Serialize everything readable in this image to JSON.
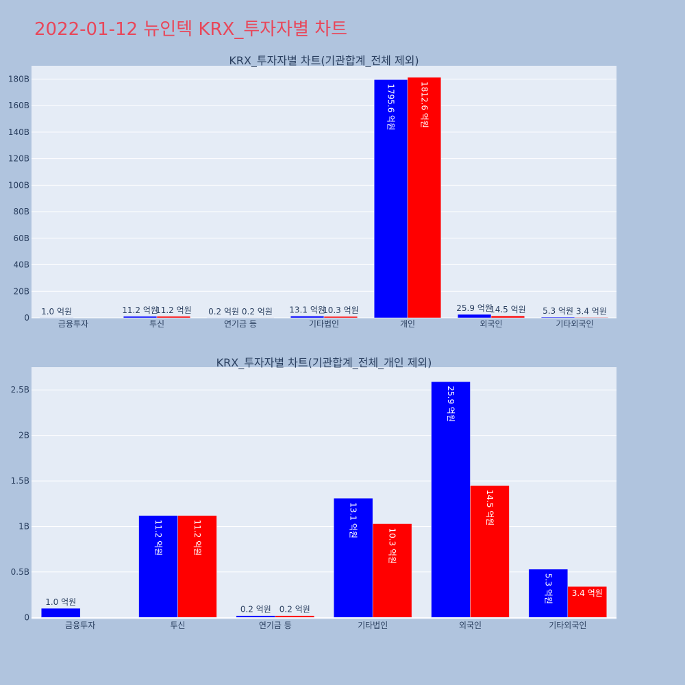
{
  "page": {
    "title": "2022-01-12 뉴인텍 KRX_투자자별 차트"
  },
  "colors": {
    "background": "#b0c4de",
    "plot_bg": "#e5ecf6",
    "buy": "#0000ff",
    "sell": "#ff0000",
    "title": "#e8475a",
    "text": "#2a3f5f"
  },
  "chart_data": [
    {
      "type": "bar",
      "title": "KRX_투자자별 차트(기관합계_전체 제외)",
      "categories": [
        "금융투자",
        "투신",
        "연기금 등",
        "기타법인",
        "개인",
        "외국인",
        "기타외국인"
      ],
      "series": [
        {
          "values": [
            100000000,
            1120000000,
            20000000,
            1310000000,
            179560000000,
            2590000000,
            530000000
          ],
          "labels": [
            "1.0 억원",
            "11.2 억원",
            "0.2 억원",
            "13.1 억원",
            "1795.6 억원",
            "25.9 억원",
            "5.3 억원"
          ]
        },
        {
          "values": [
            0,
            1120000000,
            20000000,
            1030000000,
            181260000000,
            1450000000,
            340000000
          ],
          "labels": [
            "",
            "11.2 억원",
            "0.2 억원",
            "10.3 억원",
            "1812.6 억원",
            "14.5 억원",
            "3.4 억원"
          ]
        }
      ],
      "ylim": [
        0,
        190000000000
      ],
      "yticks": [
        0,
        20000000000,
        40000000000,
        60000000000,
        80000000000,
        100000000000,
        120000000000,
        140000000000,
        160000000000,
        180000000000
      ],
      "ytick_labels": [
        "0",
        "20B",
        "40B",
        "60B",
        "80B",
        "100B",
        "120B",
        "140B",
        "160B",
        "180B"
      ],
      "grid": true
    },
    {
      "type": "bar",
      "title": "KRX_투자자별 차트(기관합계_전체_개인 제외)",
      "categories": [
        "금융투자",
        "투신",
        "연기금 등",
        "기타법인",
        "외국인",
        "기타외국인"
      ],
      "series": [
        {
          "values": [
            100000000,
            1120000000,
            20000000,
            1310000000,
            2590000000,
            530000000
          ],
          "labels": [
            "1.0 억원",
            "11.2 억원",
            "0.2 억원",
            "13.1 억원",
            "25.9 억원",
            "5.3 억원"
          ]
        },
        {
          "values": [
            0,
            1120000000,
            20000000,
            1030000000,
            1450000000,
            340000000
          ],
          "labels": [
            "",
            "11.2 억원",
            "0.2 억원",
            "10.3 억원",
            "14.5 억원",
            "3.4 억원"
          ]
        }
      ],
      "ylim": [
        -20000000,
        2750000000
      ],
      "yticks": [
        0,
        500000000,
        1000000000,
        1500000000,
        2000000000,
        2500000000
      ],
      "ytick_labels": [
        "0",
        "0.5B",
        "1B",
        "1.5B",
        "2B",
        "2.5B"
      ],
      "grid": true
    }
  ]
}
